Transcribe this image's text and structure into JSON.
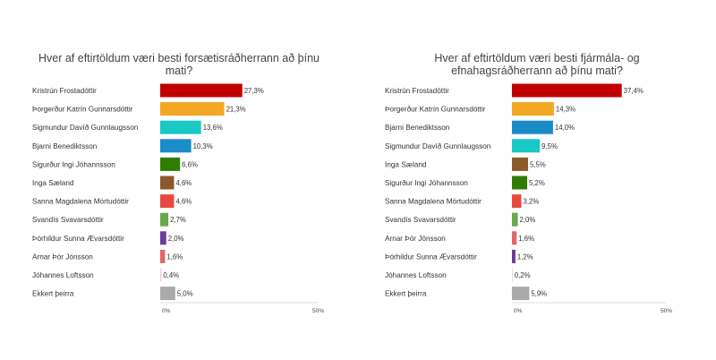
{
  "chart_data": [
    {
      "type": "bar",
      "orientation": "horizontal",
      "title": "Hver af eftirtöldum væri besti forsætisráðherrann að þínu mati?",
      "xlim": [
        0,
        50
      ],
      "ticks": [
        "0%",
        "50%"
      ],
      "grid": false,
      "categories": [
        "Kristrún Frostadóttir",
        "Þorgerður Katrín Gunnarsdóttir",
        "Sigmundur Davíð Gunnlaugsson",
        "Bjarni Benediktsson",
        "Sigurður Ingi Jóhannsson",
        "Inga Sæland",
        "Sanna Magdalena Mörtudóttir",
        "Svandís Svavarsdóttir",
        "Þórhildur Sunna Ævarsdóttir",
        "Arnar Þór Jónsson",
        "Jóhannes Loftsson",
        "Ekkert þeirra"
      ],
      "values": [
        27.3,
        21.3,
        13.6,
        10.3,
        6.6,
        4.6,
        4.6,
        2.7,
        2.0,
        1.6,
        0.4,
        5.0
      ],
      "value_labels": [
        "27,3%",
        "21,3%",
        "13,6%",
        "10,3%",
        "6,6%",
        "4,6%",
        "4,6%",
        "2,7%",
        "2,0%",
        "1,6%",
        "0,4%",
        "5,0%"
      ],
      "colors": [
        "#c00000",
        "#f5a623",
        "#18c9c4",
        "#1a8cc8",
        "#2f7d00",
        "#8b5a2b",
        "#e84a3f",
        "#6aa84f",
        "#6a3d9a",
        "#e06666",
        "#f4cccc",
        "#aaaaaa"
      ]
    },
    {
      "type": "bar",
      "orientation": "horizontal",
      "title": "Hver af eftirtöldum væri besti fjármála- og efnahagsráðherrann að þínu mati?",
      "xlim": [
        0,
        50
      ],
      "ticks": [
        "0%",
        "50%"
      ],
      "grid": false,
      "categories": [
        "Kristrún Frostadóttir",
        "Þorgerður Katrín Gunnarsdóttir",
        "Bjarni Benediktsson",
        "Sigmundur Davíð Gunnlaugsson",
        "Inga Sæland",
        "Sigurður Ingi Jóhannsson",
        "Sanna Magdalena Mörtudóttir",
        "Svandís Svavarsdóttir",
        "Arnar Þór Jónsson",
        "Þórhildur Sunna Ævarsdóttir",
        "Jóhannes Loftsson",
        "Ekkert þeirra"
      ],
      "values": [
        37.4,
        14.3,
        14.0,
        9.5,
        5.5,
        5.2,
        3.2,
        2.0,
        1.6,
        1.2,
        0.2,
        5.9
      ],
      "value_labels": [
        "37,4%",
        "14,3%",
        "14,0%",
        "9,5%",
        "5,5%",
        "5,2%",
        "3,2%",
        "2,0%",
        "1,6%",
        "1,2%",
        "0,2%",
        "5,9%"
      ],
      "colors": [
        "#c00000",
        "#f5a623",
        "#1a8cc8",
        "#18c9c4",
        "#8b5a2b",
        "#2f7d00",
        "#e84a3f",
        "#6aa84f",
        "#e06666",
        "#6a3d9a",
        "#f4cccc",
        "#aaaaaa"
      ]
    }
  ]
}
